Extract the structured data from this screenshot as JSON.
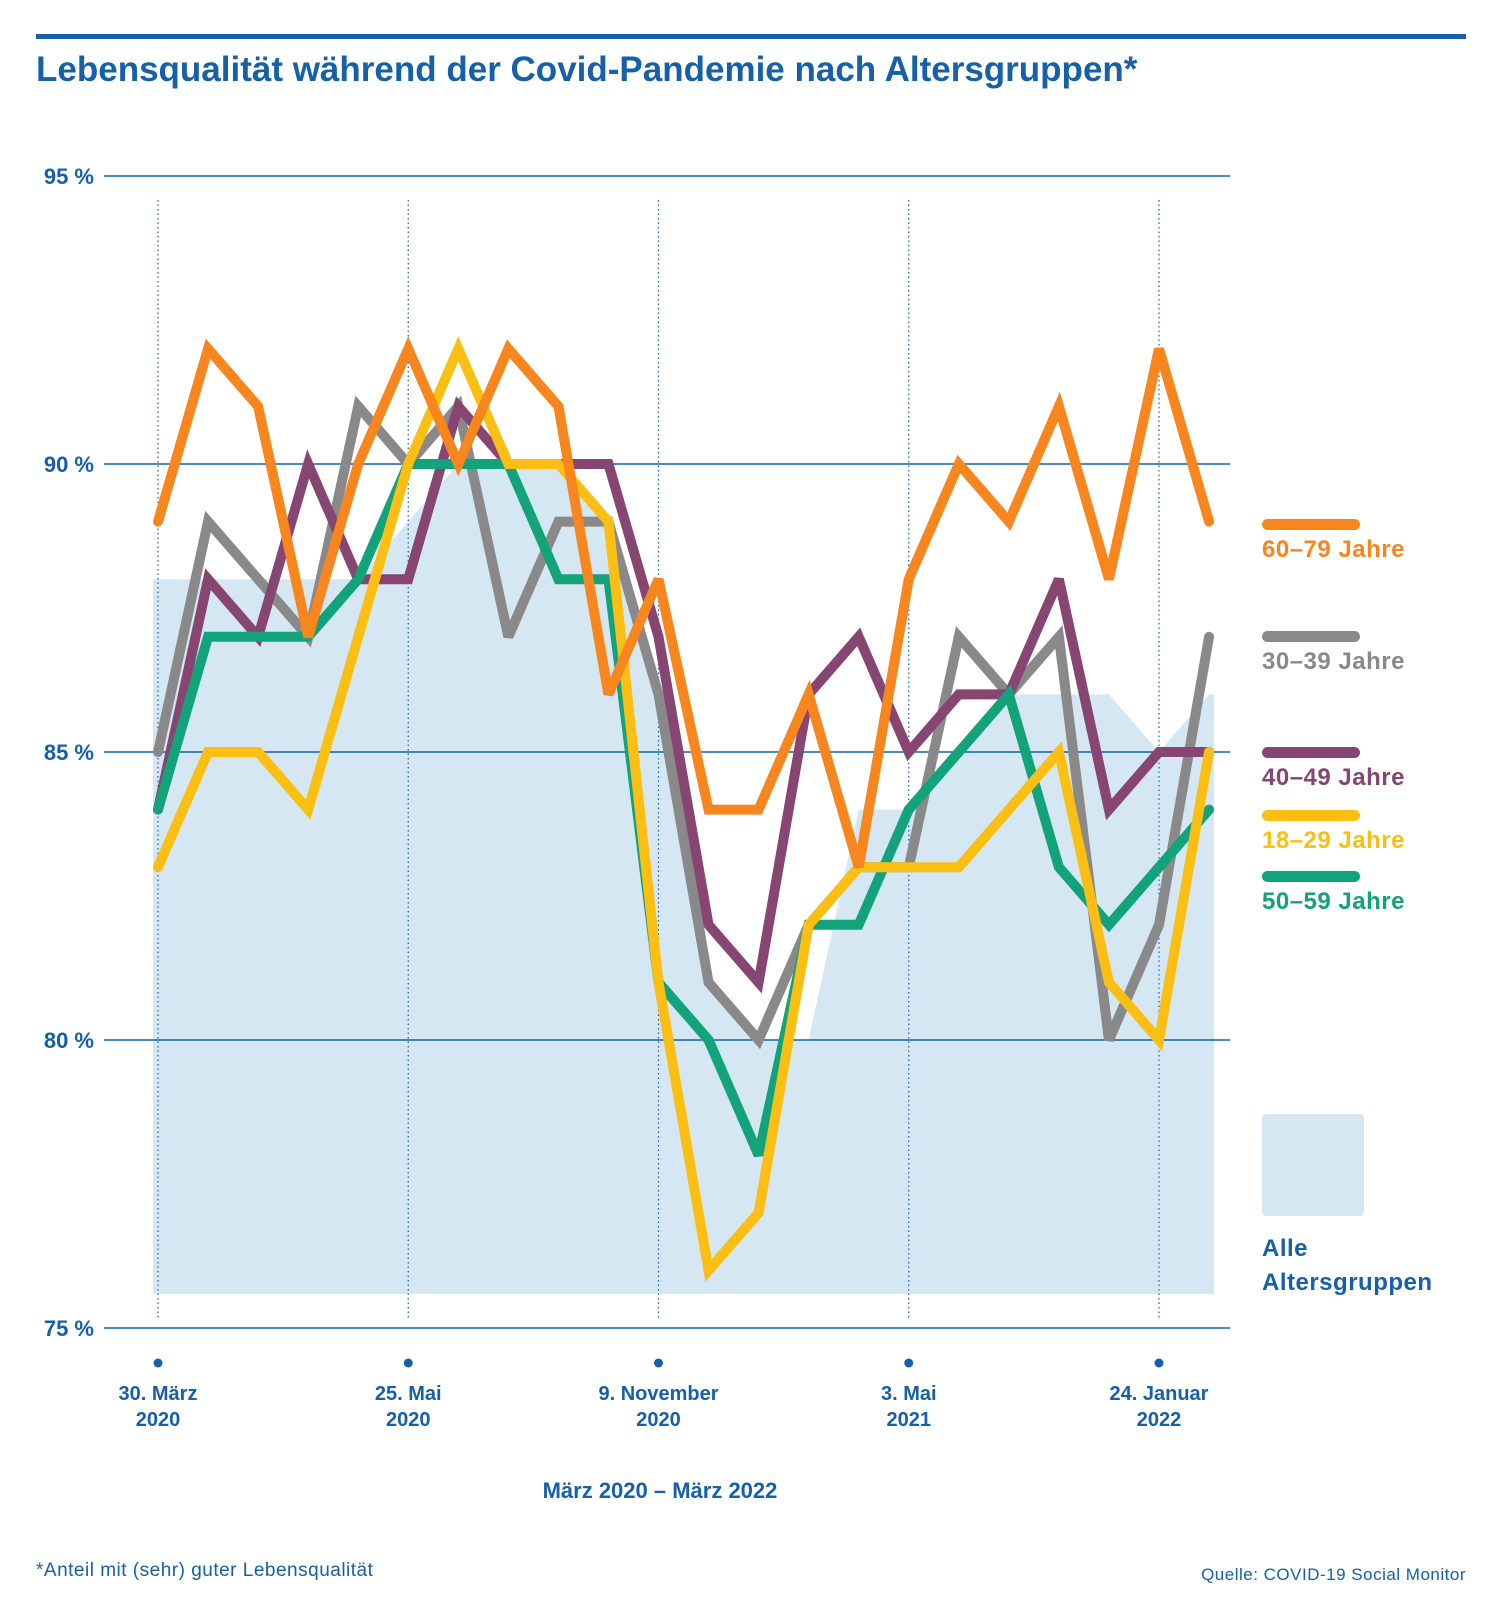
{
  "title": "Lebensqualität während der Covid-Pandemie nach Altersgruppen*",
  "footnote": "*Anteil mit (sehr) guter Lebensqualität",
  "source": "Quelle: COVID-19 Social Monitor",
  "legend_all": [
    "Alle",
    "Altersgruppen"
  ],
  "chart_data": {
    "type": "line",
    "title": "Lebensqualität während der Covid-Pandemie nach Altersgruppen*",
    "xlabel": "März 2020 – März 2022",
    "ylabel": "",
    "ylim": [
      75,
      95
    ],
    "yticks": [
      {
        "value": 95,
        "label": "95 %"
      },
      {
        "value": 90,
        "label": "90 %"
      },
      {
        "value": 85,
        "label": "85 %"
      },
      {
        "value": 80,
        "label": "80 %"
      },
      {
        "value": 75,
        "label": "75 %"
      }
    ],
    "x_ticks": [
      {
        "index": 0,
        "label": [
          "30. März",
          "2020"
        ]
      },
      {
        "index": 5,
        "label": [
          "25. Mai",
          "2020"
        ]
      },
      {
        "index": 10,
        "label": [
          "9. November",
          "2020"
        ]
      },
      {
        "index": 15,
        "label": [
          "3. Mai",
          "2021"
        ]
      },
      {
        "index": 20,
        "label": [
          "24. Januar",
          "2022"
        ]
      }
    ],
    "n_points": 22,
    "grid": "horizontal",
    "legend_position": "right",
    "area": {
      "name": "Alle Altersgruppen",
      "color": "#d5e7f3",
      "values": [
        88,
        88,
        88,
        88,
        88,
        89,
        90,
        90,
        90,
        89,
        86,
        81,
        80,
        80,
        84,
        84,
        85,
        86,
        86,
        86,
        85,
        86
      ]
    },
    "series": [
      {
        "name": "60–79 Jahre",
        "color": "#f7861e",
        "values": [
          89,
          92,
          91,
          87,
          90,
          92,
          90,
          92,
          91,
          86,
          88,
          84,
          84,
          86,
          83,
          88,
          90,
          89,
          91,
          88,
          92,
          89
        ]
      },
      {
        "name": "30–39 Jahre",
        "color": "#898989",
        "values": [
          85,
          89,
          88,
          87,
          91,
          90,
          91,
          87,
          89,
          89,
          86,
          81,
          80,
          82,
          83,
          83,
          87,
          86,
          87,
          80,
          82,
          87
        ]
      },
      {
        "name": "40–49 Jahre",
        "color": "#874572",
        "values": [
          84,
          88,
          87,
          90,
          88,
          88,
          91,
          90,
          90,
          90,
          87,
          82,
          81,
          86,
          87,
          85,
          86,
          86,
          88,
          84,
          85,
          85
        ]
      },
      {
        "name": "18–29 Jahre",
        "color": "#fbbf13",
        "values": [
          83,
          85,
          85,
          84,
          87,
          90,
          92,
          90,
          90,
          89,
          81,
          76,
          77,
          82,
          83,
          83,
          83,
          84,
          85,
          81,
          80,
          85
        ]
      },
      {
        "name": "50–59 Jahre",
        "color": "#13a37b",
        "values": [
          84,
          87,
          87,
          87,
          88,
          90,
          90,
          90,
          88,
          88,
          81,
          80,
          78,
          82,
          82,
          84,
          85,
          86,
          83,
          82,
          83,
          84
        ]
      }
    ]
  }
}
